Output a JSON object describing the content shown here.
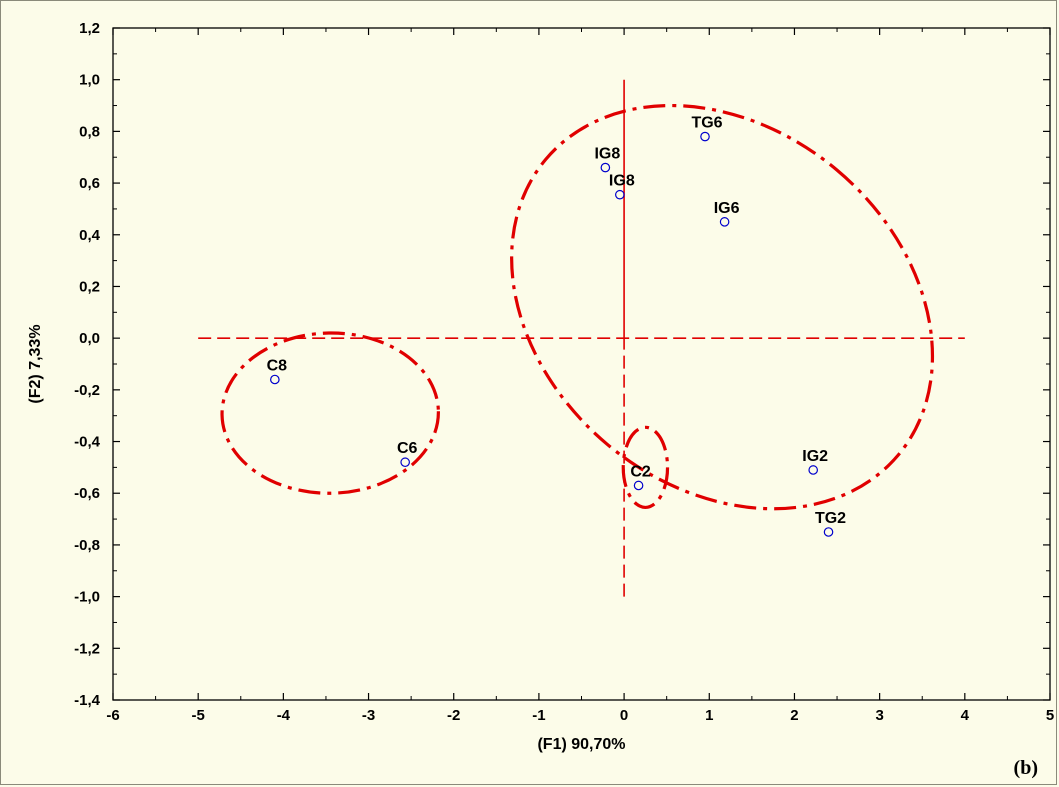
{
  "chart_data": {
    "type": "scatter",
    "xlabel": "(F1) 90,70%",
    "ylabel": "(F2) 7,33%",
    "panel_tag": "(b)",
    "xlim": [
      -6,
      5
    ],
    "ylim": [
      -1.4,
      1.2
    ],
    "x_ticks": [
      -6,
      -5,
      -4,
      -3,
      -2,
      -1,
      0,
      1,
      2,
      3,
      4,
      5
    ],
    "x_tick_labels": [
      "-6",
      "-5",
      "-4",
      "-3",
      "-2",
      "-1",
      "0",
      "1",
      "2",
      "3",
      "4",
      "5"
    ],
    "y_ticks": [
      1.2,
      1.0,
      0.8,
      0.6,
      0.4,
      0.2,
      0.0,
      -0.2,
      -0.4,
      -0.6,
      -0.8,
      -1.0,
      -1.2,
      -1.4
    ],
    "y_tick_labels": [
      "1,2",
      "1,0",
      "0,8",
      "0,6",
      "0,4",
      "0,2",
      "0,0",
      "-0,2",
      "-0,4",
      "-0,6",
      "-0,8",
      "-1,0",
      "-1,2",
      "-1,4"
    ],
    "grid": false,
    "points": [
      {
        "label": "TG6",
        "x": 0.95,
        "y": 0.78
      },
      {
        "label": "IG8",
        "x": -0.22,
        "y": 0.66
      },
      {
        "label": "IG8",
        "x": -0.05,
        "y": 0.555
      },
      {
        "label": "IG6",
        "x": 1.18,
        "y": 0.45
      },
      {
        "label": "C8",
        "x": -4.1,
        "y": -0.16
      },
      {
        "label": "C6",
        "x": -2.57,
        "y": -0.48
      },
      {
        "label": "C2",
        "x": 0.17,
        "y": -0.57
      },
      {
        "label": "IG2",
        "x": 2.22,
        "y": -0.51
      },
      {
        "label": "TG2",
        "x": 2.4,
        "y": -0.75
      }
    ],
    "reference_lines": [
      {
        "kind": "h-dashed",
        "y": 0.0,
        "x_from": -5.0,
        "x_to": 4.0
      },
      {
        "kind": "v-solid",
        "x": 0.0,
        "y_from": 0.0,
        "y_to": 1.0
      },
      {
        "kind": "v-dashed",
        "x": 0.0,
        "y_from": -1.0,
        "y_to": 0.0
      }
    ],
    "groupings": [
      {
        "cx": -3.45,
        "cy": -0.29,
        "rx": 1.27,
        "ry": 0.31,
        "angle": -1
      },
      {
        "cx": 0.25,
        "cy": -0.5,
        "rx": 0.26,
        "ry": 0.155,
        "angle": 0
      },
      {
        "cx": 1.15,
        "cy": 0.12,
        "rx": 2.1,
        "ry": 0.89,
        "angle": -50
      }
    ],
    "colors": {
      "ellipse": "#e00000",
      "point": "#0000cc",
      "reference": "#e00000",
      "background": "#fcfce9"
    }
  }
}
